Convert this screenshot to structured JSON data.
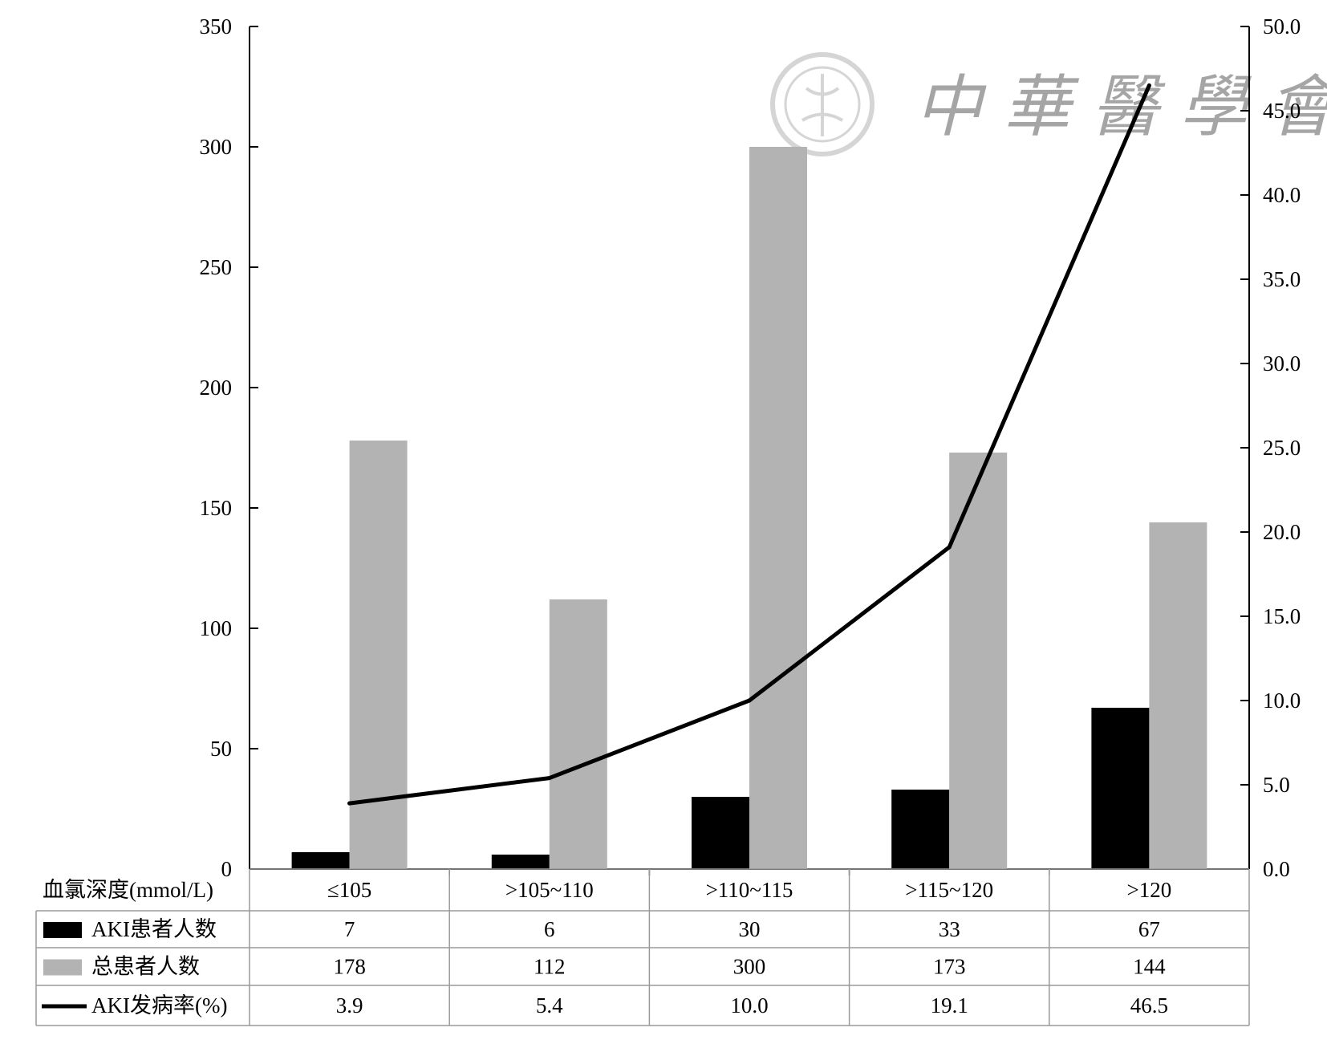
{
  "watermark": {
    "text": "中華醫學會",
    "seal": "seal-icon"
  },
  "chart_data": {
    "type": "bar",
    "title": "",
    "xlabel": "血氯深度(mmol/L)",
    "ylabel": "",
    "ylabel_right": "",
    "categories": [
      "≤105",
      ">105~110",
      ">110~115",
      ">115~120",
      ">120"
    ],
    "ylim": [
      0,
      350
    ],
    "y_ticks": [
      0,
      50,
      100,
      150,
      200,
      250,
      300,
      350
    ],
    "y_tick_labels": [
      "0",
      "50",
      "100",
      "150",
      "200",
      "250",
      "300",
      "350"
    ],
    "ylim_right": [
      0,
      50
    ],
    "y2_ticks": [
      0,
      5,
      10,
      15,
      20,
      25,
      30,
      35,
      40,
      45,
      50
    ],
    "y2_tick_labels": [
      "0.0",
      "5.0",
      "10.0",
      "15.0",
      "20.0",
      "25.0",
      "30.0",
      "35.0",
      "40.0",
      "45.0",
      "50.0"
    ],
    "grid": false,
    "legend": "table-below",
    "series": [
      {
        "name": "AKI患者人数",
        "type": "bar",
        "axis": "left",
        "color": "#000000",
        "values": [
          7,
          6,
          30,
          33,
          67
        ],
        "labels": [
          "7",
          "6",
          "30",
          "33",
          "67"
        ]
      },
      {
        "name": "总患者人数",
        "type": "bar",
        "axis": "left",
        "color": "#b3b3b3",
        "values": [
          178,
          112,
          300,
          173,
          144
        ],
        "labels": [
          "178",
          "112",
          "300",
          "173",
          "144"
        ]
      },
      {
        "name": "AKI发病率(%)",
        "type": "line",
        "axis": "right",
        "color": "#000000",
        "values": [
          3.9,
          5.4,
          10.0,
          19.1,
          46.5
        ],
        "labels": [
          "3.9",
          "5.4",
          "10.0",
          "19.1",
          "46.5"
        ]
      }
    ]
  }
}
